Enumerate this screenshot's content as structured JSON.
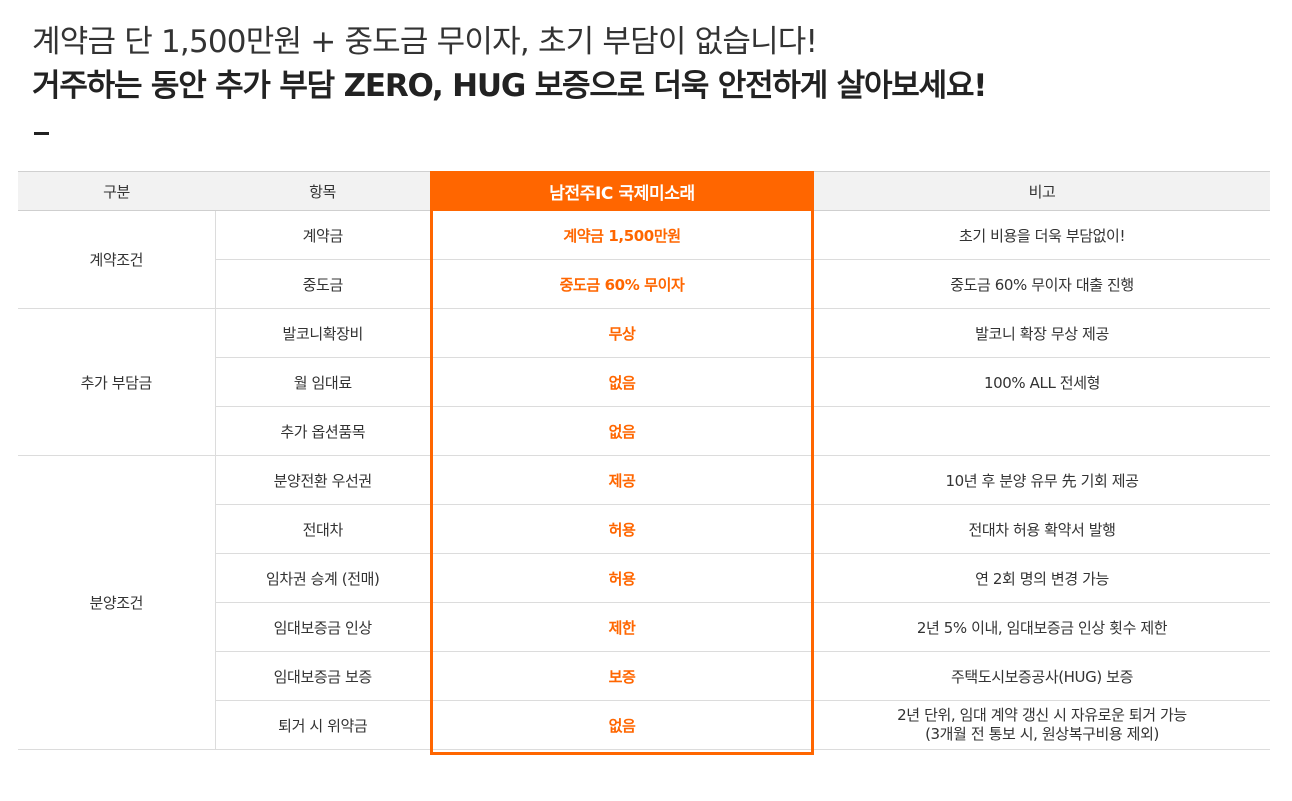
{
  "headline": {
    "line1": "계약금 단 1,500만원 + 중도금 무이자, 초기 부담이 없습니다!",
    "line2": "거주하는 동안 추가 부담 ZERO, HUG 보증으로 더욱 안전하게 살아보세요!"
  },
  "table": {
    "headers": {
      "category": "구분",
      "item": "항목",
      "highlight": "남전주IC 국제미소래",
      "note": "비고"
    },
    "groups": [
      {
        "category": "계약조건",
        "rows": [
          {
            "item": "계약금",
            "value": "계약금 1,500만원",
            "note": "초기 비용을 더욱 부담없이!"
          },
          {
            "item": "중도금",
            "value": "중도금 60% 무이자",
            "note": "중도금 60% 무이자 대출 진행"
          }
        ]
      },
      {
        "category": "추가 부담금",
        "rows": [
          {
            "item": "발코니확장비",
            "value": "무상",
            "note": "발코니 확장 무상 제공"
          },
          {
            "item": "월 임대료",
            "value": "없음",
            "note": "100% ALL 전세형"
          },
          {
            "item": "추가 옵션품목",
            "value": "없음",
            "note": ""
          }
        ]
      },
      {
        "category": "분양조건",
        "rows": [
          {
            "item": "분양전환 우선권",
            "value": "제공",
            "note": "10년 후 분양 유무 先 기회 제공"
          },
          {
            "item": "전대차",
            "value": "허용",
            "note": "전대차 허용 확약서 발행"
          },
          {
            "item": "임차권 승계 (전매)",
            "value": "허용",
            "note": "연 2회 명의 변경 가능"
          },
          {
            "item": "임대보증금 인상",
            "value": "제한",
            "note": "2년 5% 이내, 임대보증금 인상 횟수 제한"
          },
          {
            "item": "임대보증금 보증",
            "value": "보증",
            "note": "주택도시보증공사(HUG) 보증"
          },
          {
            "item": "퇴거 시 위약금",
            "value": "없음",
            "note": "2년 단위, 임대 계약 갱신 시 자유로운 퇴거 가능",
            "note2": "(3개월 전 통보 시, 원상복구비용 제외)"
          }
        ]
      }
    ]
  },
  "colors": {
    "accent": "#ff6600",
    "header_bg": "#f2f2f2"
  }
}
